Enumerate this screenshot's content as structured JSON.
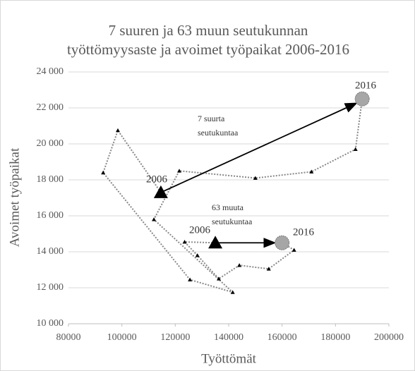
{
  "chart_data": {
    "type": "scatter",
    "title": "7 suuren ja 63 muun seutukunnan työttömyysaste ja avoimet työpaikat 2006-2016",
    "xlabel": "Työttömät",
    "ylabel": "Avoimet työpaikat",
    "xlim": [
      80000,
      200000
    ],
    "xticks": [
      80000,
      100000,
      120000,
      140000,
      160000,
      180000,
      200000
    ],
    "ylim": [
      10000,
      24000
    ],
    "yticks": [
      {
        "value": 10000,
        "label": "10 000"
      },
      {
        "value": 12000,
        "label": "12 000"
      },
      {
        "value": 14000,
        "label": "14 000"
      },
      {
        "value": 16000,
        "label": "16 000"
      },
      {
        "value": 18000,
        "label": "18 000"
      },
      {
        "value": 20000,
        "label": "20 000"
      },
      {
        "value": 22000,
        "label": "22 000"
      },
      {
        "value": 24000,
        "label": "24 000"
      }
    ],
    "annotations": [
      "2006",
      "2016",
      "2006",
      "2016"
    ],
    "series": [
      {
        "name": "7 suurta seutukuntaa",
        "color": "#000000",
        "x": [
          114600,
          98500,
          93000,
          125500,
          141500,
          112000,
          121500,
          150000,
          171000,
          187500,
          190000
        ],
        "values": [
          17300,
          20750,
          18400,
          12450,
          11750,
          15800,
          18500,
          18100,
          18450,
          19700,
          22500
        ]
      },
      {
        "name": "63 muuta seutukuntaa",
        "color": "#000000",
        "x": [
          135000,
          123500,
          128300,
          136300,
          144000,
          155000,
          164500,
          160000
        ],
        "values": [
          14500,
          14550,
          13800,
          12500,
          13250,
          13050,
          14100,
          14500
        ]
      }
    ]
  }
}
